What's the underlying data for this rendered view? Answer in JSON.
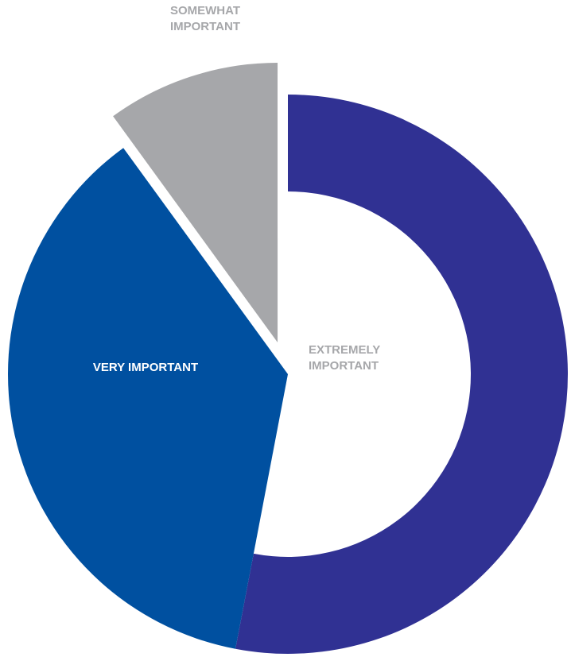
{
  "chart_data": {
    "type": "pie",
    "title": "",
    "categories": [
      "EXTREMELY IMPORTANT",
      "VERY IMPORTANT",
      "SOMEWHAT IMPORTANT"
    ],
    "values": [
      53,
      37,
      10
    ],
    "colors": [
      "#303193",
      "#0050a0",
      "#a6a7aa"
    ],
    "label_colors": [
      "#a6a7aa",
      "#ffffff",
      "#a6a7aa"
    ],
    "exploded_slice": "SOMEWHAT IMPORTANT",
    "donut_hole_slice": "EXTREMELY IMPORTANT",
    "legend": "none",
    "labels": [
      {
        "lines": [
          "EXTREMELY",
          "IMPORTANT"
        ]
      },
      {
        "lines": [
          "VERY IMPORTANT"
        ]
      },
      {
        "lines": [
          "SOMEWHAT",
          "IMPORTANT"
        ]
      }
    ]
  }
}
